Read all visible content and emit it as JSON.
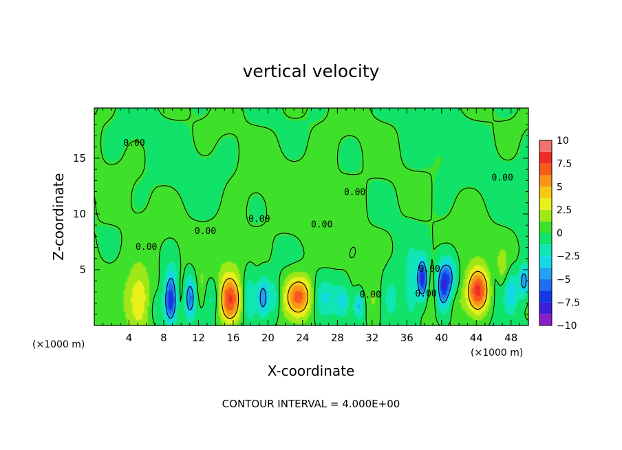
{
  "chart_data": {
    "type": "heatmap",
    "title": "vertical velocity",
    "xlabel": "X-coordinate",
    "ylabel": "Z-coordinate",
    "x_unit_left": "(×1000 m)",
    "x_unit_right": "(×1000 m)",
    "xlim": [
      0,
      50
    ],
    "ylim": [
      0,
      19.5
    ],
    "x_ticks": [
      4,
      8,
      12,
      16,
      20,
      24,
      28,
      32,
      36,
      40,
      44,
      48
    ],
    "y_ticks": [
      5,
      10,
      15
    ],
    "colorbar": {
      "min": -10,
      "max": 10,
      "tick_values": [
        10,
        7.5,
        5,
        2.5,
        0,
        -2.5,
        -5,
        -7.5,
        -10
      ],
      "tick_labels": [
        "10",
        "7.5",
        "5",
        "2.5",
        "0",
        "−2.5",
        "−5",
        "−7.5",
        "−10"
      ],
      "levels": [
        {
          "from": -10,
          "to": -8.75,
          "color": "#8a1fc8"
        },
        {
          "from": -8.75,
          "to": -7.5,
          "color": "#3a1fd8"
        },
        {
          "from": -7.5,
          "to": -6.25,
          "color": "#1438e8"
        },
        {
          "from": -6.25,
          "to": -5,
          "color": "#1e6ef0"
        },
        {
          "from": -5,
          "to": -3.75,
          "color": "#24a0f4"
        },
        {
          "from": -3.75,
          "to": -2.5,
          "color": "#14d8e6"
        },
        {
          "from": -2.5,
          "to": -1.25,
          "color": "#10e6b4"
        },
        {
          "from": -1.25,
          "to": 0,
          "color": "#10e26a"
        },
        {
          "from": 0,
          "to": 1.25,
          "color": "#3ee02a"
        },
        {
          "from": 1.25,
          "to": 2.5,
          "color": "#9ee818"
        },
        {
          "from": 2.5,
          "to": 3.75,
          "color": "#e8f01c"
        },
        {
          "from": 3.75,
          "to": 5,
          "color": "#f6c814"
        },
        {
          "from": 5,
          "to": 6.25,
          "color": "#f8941a"
        },
        {
          "from": 6.25,
          "to": 7.5,
          "color": "#f65a1c"
        },
        {
          "from": 7.5,
          "to": 8.75,
          "color": "#ee2c28"
        },
        {
          "from": 8.75,
          "to": 10,
          "color": "#f2706e"
        }
      ]
    },
    "contour_interval_note": "CONTOUR INTERVAL = 4.000E+00",
    "contour_labels": [
      {
        "text": "0.00",
        "x": 4.6,
        "y": 16.1
      },
      {
        "text": "0.00",
        "x": 6.0,
        "y": 6.8
      },
      {
        "text": "0.00",
        "x": 12.8,
        "y": 8.2
      },
      {
        "text": "0.00",
        "x": 19.0,
        "y": 9.3
      },
      {
        "text": "0.00",
        "x": 26.2,
        "y": 8.8
      },
      {
        "text": "0.00",
        "x": 30.0,
        "y": 11.7
      },
      {
        "text": "0.00",
        "x": 31.8,
        "y": 2.5
      },
      {
        "text": "0.00",
        "x": 38.2,
        "y": 2.6
      },
      {
        "text": "0.00",
        "x": 38.6,
        "y": 4.8
      },
      {
        "text": "0.00",
        "x": 47.0,
        "y": 13.0
      }
    ],
    "features": [
      {
        "x": 1.5,
        "y": 6.0,
        "w": 0.3,
        "sx": 6,
        "sy": 8
      },
      {
        "x": 5.2,
        "y": 2.2,
        "w": 3.0,
        "sx": 0.9,
        "sy": 1.8
      },
      {
        "x": 5.0,
        "y": 3.5,
        "w": 0.8,
        "sx": 1.6,
        "sy": 2.5
      },
      {
        "x": 7.0,
        "y": 1.5,
        "w": -1.2,
        "sx": 0.7,
        "sy": 1.2
      },
      {
        "x": 8.8,
        "y": 2.2,
        "w": -7.8,
        "sx": 0.5,
        "sy": 1.4
      },
      {
        "x": 9.0,
        "y": 4.5,
        "w": -1.5,
        "sx": 0.6,
        "sy": 1.2
      },
      {
        "x": 10.0,
        "y": 3.0,
        "w": 1.2,
        "sx": 0.5,
        "sy": 1.6
      },
      {
        "x": 11.0,
        "y": 2.5,
        "w": -5.5,
        "sx": 0.45,
        "sy": 1.3
      },
      {
        "x": 12.3,
        "y": 3.4,
        "w": 1.5,
        "sx": 0.4,
        "sy": 1.4
      },
      {
        "x": 13.8,
        "y": 2.5,
        "w": -2.0,
        "sx": 0.6,
        "sy": 1.2
      },
      {
        "x": 15.6,
        "y": 2.3,
        "w": 7.2,
        "sx": 0.9,
        "sy": 1.5
      },
      {
        "x": 15.5,
        "y": 6.5,
        "w": 0.8,
        "sx": 1.5,
        "sy": 2.2
      },
      {
        "x": 17.8,
        "y": 2.4,
        "w": -3.0,
        "sx": 0.6,
        "sy": 1.6
      },
      {
        "x": 19.4,
        "y": 2.5,
        "w": -4.6,
        "sx": 0.4,
        "sy": 1.2
      },
      {
        "x": 20.6,
        "y": 2.5,
        "w": -2.5,
        "sx": 0.6,
        "sy": 1.2
      },
      {
        "x": 23.6,
        "y": 2.6,
        "w": 6.8,
        "sx": 1.2,
        "sy": 1.3
      },
      {
        "x": 26.3,
        "y": 2.5,
        "w": -2.6,
        "sx": 1.0,
        "sy": 1.2
      },
      {
        "x": 28.6,
        "y": 2.2,
        "w": -3.0,
        "sx": 0.6,
        "sy": 1.0
      },
      {
        "x": 30.5,
        "y": 1.8,
        "w": -4.2,
        "sx": 0.4,
        "sy": 0.8
      },
      {
        "x": 32.2,
        "y": 2.2,
        "w": 1.5,
        "sx": 0.7,
        "sy": 1.5
      },
      {
        "x": 34.2,
        "y": 2.5,
        "w": -1.8,
        "sx": 0.8,
        "sy": 1.8
      },
      {
        "x": 36.5,
        "y": 3.2,
        "w": -2.5,
        "sx": 0.6,
        "sy": 2.4
      },
      {
        "x": 37.8,
        "y": 4.2,
        "w": -8.0,
        "sx": 0.4,
        "sy": 1.2
      },
      {
        "x": 38.8,
        "y": 3.0,
        "w": 1.5,
        "sx": 0.4,
        "sy": 1.6
      },
      {
        "x": 40.2,
        "y": 3.6,
        "w": -6.8,
        "sx": 0.5,
        "sy": 1.4
      },
      {
        "x": 41.0,
        "y": 4.5,
        "w": -3.5,
        "sx": 0.5,
        "sy": 1.2
      },
      {
        "x": 41.8,
        "y": 2.0,
        "w": 1.0,
        "sx": 0.8,
        "sy": 1.0
      },
      {
        "x": 44.2,
        "y": 3.1,
        "w": 7.9,
        "sx": 0.9,
        "sy": 1.4
      },
      {
        "x": 43.5,
        "y": 6.5,
        "w": 0.8,
        "sx": 1.2,
        "sy": 2.0
      },
      {
        "x": 46.3,
        "y": 4.5,
        "w": -1.8,
        "sx": 0.5,
        "sy": 1.4
      },
      {
        "x": 46.8,
        "y": 5.0,
        "w": 2.5,
        "sx": 0.6,
        "sy": 1.3
      },
      {
        "x": 48.0,
        "y": 3.0,
        "w": -3.5,
        "sx": 0.6,
        "sy": 1.3
      },
      {
        "x": 49.5,
        "y": 4.0,
        "w": -5.2,
        "sx": 0.4,
        "sy": 1.0
      },
      {
        "x": 25.0,
        "y": 12.5,
        "w": 0.5,
        "sx": 8,
        "sy": 4
      },
      {
        "x": 10.0,
        "y": 14.0,
        "w": -0.4,
        "sx": 6,
        "sy": 3
      },
      {
        "x": 40.0,
        "y": 15.0,
        "w": -0.3,
        "sx": 8,
        "sy": 3
      }
    ]
  }
}
